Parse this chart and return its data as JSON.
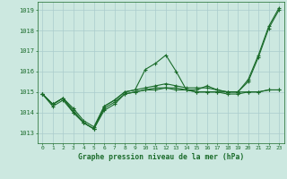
{
  "title": "Graphe pression niveau de la mer (hPa)",
  "yticks": [
    1013,
    1014,
    1015,
    1016,
    1017,
    1018,
    1019
  ],
  "ylim": [
    1012.5,
    1019.4
  ],
  "xlim": [
    -0.5,
    23.5
  ],
  "background_color": "#cce8e0",
  "grid_color": "#aacccc",
  "line_color": "#1a6b2a",
  "label_color": "#1a6b2a",
  "series": [
    [
      1014.9,
      1014.4,
      1014.7,
      1014.0,
      1013.5,
      1013.2,
      1014.3,
      1014.6,
      1015.0,
      1015.1,
      1016.1,
      1016.4,
      1016.8,
      1016.0,
      1015.1,
      1015.1,
      1015.3,
      1015.1,
      1015.0,
      1015.0,
      1015.6,
      1016.8,
      1018.2,
      1019.1
    ],
    [
      1014.9,
      1014.4,
      1014.7,
      1014.1,
      1013.5,
      1013.2,
      1014.2,
      1014.5,
      1014.9,
      1015.0,
      1015.1,
      1015.2,
      1015.2,
      1015.2,
      1015.1,
      1015.0,
      1015.0,
      1015.0,
      1015.0,
      1015.0,
      1015.0,
      1015.0,
      1015.1,
      1015.1
    ],
    [
      1014.9,
      1014.3,
      1014.6,
      1014.0,
      1013.5,
      1013.2,
      1014.1,
      1014.4,
      1014.9,
      1015.0,
      1015.1,
      1015.1,
      1015.2,
      1015.1,
      1015.1,
      1015.0,
      1015.0,
      1015.0,
      1014.9,
      1014.9,
      1015.0,
      1015.0,
      1015.1,
      1015.1
    ],
    [
      1014.9,
      1014.4,
      1014.7,
      1014.2,
      1013.6,
      1013.3,
      1014.3,
      1014.6,
      1015.0,
      1015.1,
      1015.2,
      1015.3,
      1015.4,
      1015.3,
      1015.2,
      1015.2,
      1015.2,
      1015.1,
      1015.0,
      1015.0,
      1015.5,
      1016.7,
      1018.1,
      1019.0
    ]
  ]
}
